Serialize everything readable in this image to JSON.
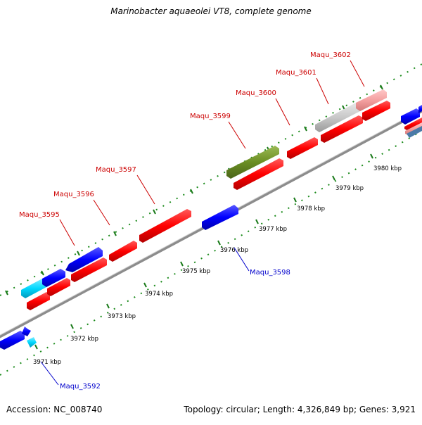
{
  "title": "Marinobacter aquaeolei VT8, complete genome",
  "footer": {
    "accession": "Accession: NC_008740",
    "summary": "Topology: circular; Length: 4,326,849 bp; Genes: 3,921"
  },
  "colors": {
    "forward": "#ff0000",
    "reverse": "#0000ff",
    "cyan": "#00d8ff",
    "olive": "#6b8e23",
    "gray": "#c8c8c8",
    "pink": "#f4a0a0",
    "backbone": "#808080",
    "ticks": "#008000",
    "labelForward": "#cc0000",
    "labelReverse": "#0000cc"
  },
  "scale_labels": [
    "3971 kbp",
    "3972 kbp",
    "3973 kbp",
    "3974 kbp",
    "3975 kbp",
    "3976 kbp",
    "3977 kbp",
    "3978 kbp",
    "3979 kbp",
    "3980 kbp"
  ],
  "gene_labels": [
    {
      "name": "Maqu_3595",
      "strand": "forward"
    },
    {
      "name": "Maqu_3596",
      "strand": "forward"
    },
    {
      "name": "Maqu_3597",
      "strand": "forward"
    },
    {
      "name": "Maqu_3599",
      "strand": "forward"
    },
    {
      "name": "Maqu_3600",
      "strand": "forward"
    },
    {
      "name": "Maqu_3601",
      "strand": "forward"
    },
    {
      "name": "Maqu_3602",
      "strand": "forward"
    },
    {
      "name": "Maqu_3598",
      "strand": "reverse"
    },
    {
      "name": "Maqu_3592",
      "strand": "reverse"
    }
  ]
}
